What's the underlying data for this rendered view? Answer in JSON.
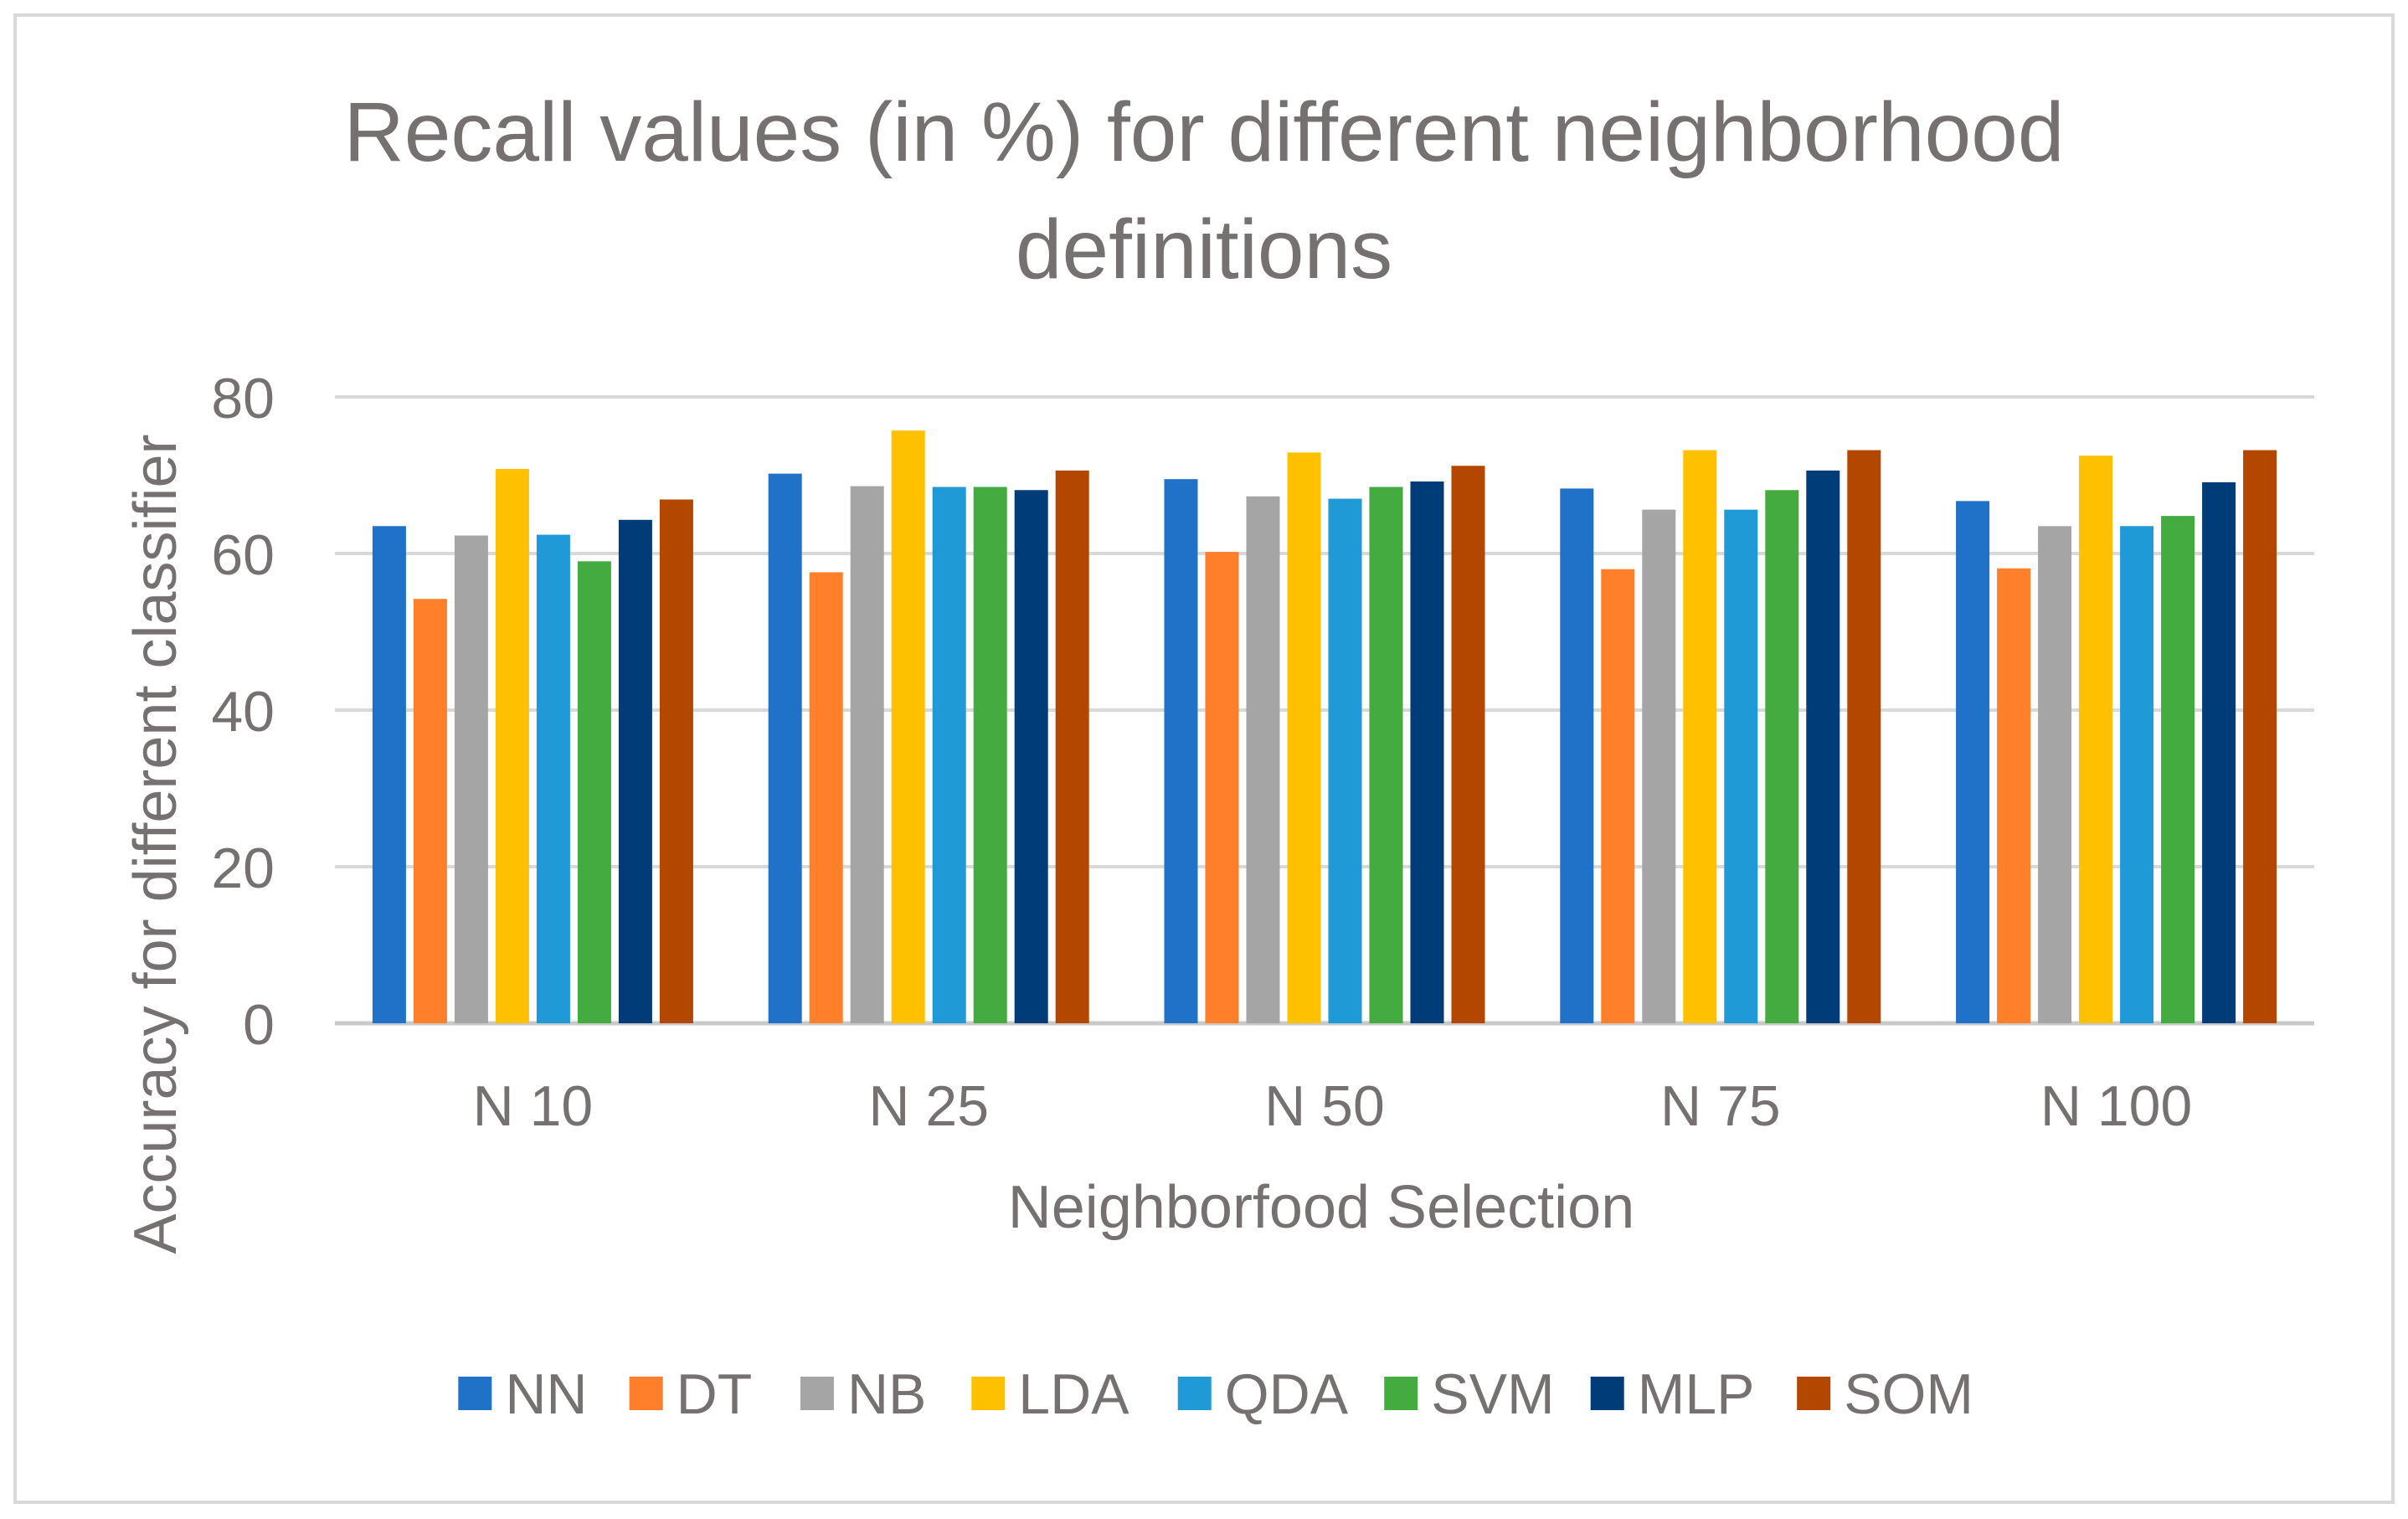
{
  "chart_data": {
    "type": "bar",
    "title_lines": [
      "Recall values (in %) for different neighborhood",
      "definitions"
    ],
    "xlabel": "Neighborfood Selection",
    "ylabel": "Accuracy for different classifier",
    "ylim": [
      0,
      80
    ],
    "yticks": [
      "0",
      "20",
      "40",
      "60",
      "80"
    ],
    "ytick_values": [
      0,
      20,
      40,
      60,
      80
    ],
    "categories": [
      "N 10",
      "N 25",
      "N 50",
      "N 75",
      "N 100"
    ],
    "legend_position": "bottom",
    "grid": true,
    "series": [
      {
        "name": "NN",
        "color": "#1F72C8",
        "values": [
          63.5,
          70.2,
          69.5,
          68.3,
          66.7
        ]
      },
      {
        "name": "DT",
        "color": "#FF7F2A",
        "values": [
          54.2,
          57.6,
          60.2,
          58.0,
          58.1
        ]
      },
      {
        "name": "NB",
        "color": "#A5A5A5",
        "values": [
          62.3,
          68.6,
          67.3,
          65.6,
          63.5
        ]
      },
      {
        "name": "LDA",
        "color": "#FFC000",
        "values": [
          70.8,
          75.7,
          72.9,
          73.2,
          72.5
        ]
      },
      {
        "name": "QDA",
        "color": "#1F9AD6",
        "values": [
          62.4,
          68.5,
          67.0,
          65.6,
          63.5
        ]
      },
      {
        "name": "SVM",
        "color": "#43AB3F",
        "values": [
          59.0,
          68.5,
          68.5,
          68.1,
          64.8
        ]
      },
      {
        "name": "MLP",
        "color": "#003C78",
        "values": [
          64.3,
          68.1,
          69.2,
          70.6,
          69.1
        ]
      },
      {
        "name": "SOM",
        "color": "#B34700",
        "values": [
          66.9,
          70.6,
          71.2,
          73.2,
          73.2
        ]
      }
    ]
  }
}
